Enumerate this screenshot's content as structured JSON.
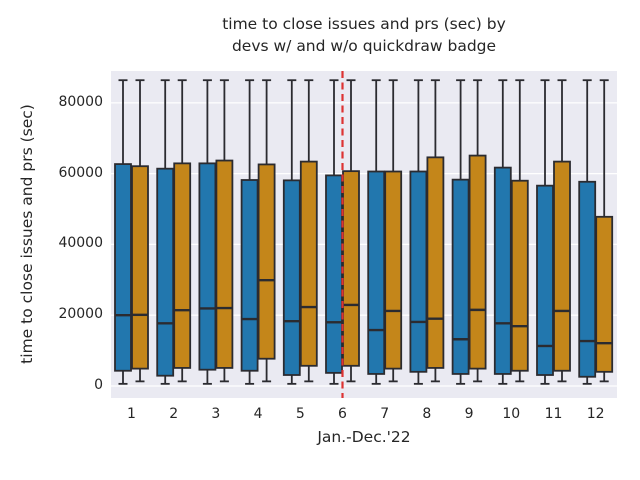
{
  "figure": {
    "title_line1": "time to close issues and prs (sec) by",
    "title_line2": "devs w/ and w/o quickdraw badge"
  },
  "colors": {
    "box_blue": "#2277AE",
    "box_orange": "#C4861A",
    "box_edge": "#2B2B30",
    "axes_background": "#EAEAF2",
    "gridline": "#FFFFFF",
    "reference_line": "#DD3333",
    "text": "#262626"
  },
  "chart_data": {
    "type": "grouped_boxplot",
    "title": "time to close issues and prs (sec) by devs w/ and w/o quickdraw badge",
    "xlabel": "Jan.-Dec.'22",
    "ylabel": "time to close issues and prs (sec)",
    "categories": [
      "1",
      "2",
      "3",
      "4",
      "5",
      "6",
      "7",
      "8",
      "9",
      "10",
      "11",
      "12"
    ],
    "y_ticks": [
      0,
      20000,
      40000,
      60000,
      80000
    ],
    "ylim": [
      -3400,
      89000
    ],
    "grid": "horizontal",
    "legend": "none",
    "reference_line": {
      "x_category": "6",
      "style": "dashed"
    },
    "series": [
      {
        "name": "blue-left-box",
        "boxes": [
          {
            "whislo": 600,
            "q1": 4300,
            "med": 20000,
            "q3": 62700,
            "whishi": 86400
          },
          {
            "whislo": 600,
            "q1": 2900,
            "med": 17700,
            "q3": 61400,
            "whishi": 86400
          },
          {
            "whislo": 600,
            "q1": 4600,
            "med": 21900,
            "q3": 62900,
            "whishi": 86400
          },
          {
            "whislo": 600,
            "q1": 4300,
            "med": 18900,
            "q3": 58200,
            "whishi": 86400
          },
          {
            "whislo": 600,
            "q1": 3100,
            "med": 18300,
            "q3": 58100,
            "whishi": 86400
          },
          {
            "whislo": 600,
            "q1": 3700,
            "med": 18000,
            "q3": 59500,
            "whishi": 86400
          },
          {
            "whislo": 600,
            "q1": 3400,
            "med": 15800,
            "q3": 60600,
            "whishi": 86400
          },
          {
            "whislo": 600,
            "q1": 4000,
            "med": 18100,
            "q3": 60600,
            "whishi": 86400
          },
          {
            "whislo": 600,
            "q1": 3400,
            "med": 13200,
            "q3": 58300,
            "whishi": 86400
          },
          {
            "whislo": 600,
            "q1": 3400,
            "med": 17700,
            "q3": 61700,
            "whishi": 86400
          },
          {
            "whislo": 600,
            "q1": 3100,
            "med": 11300,
            "q3": 56600,
            "whishi": 86400
          },
          {
            "whislo": 600,
            "q1": 2600,
            "med": 12700,
            "q3": 57700,
            "whishi": 86400
          }
        ]
      },
      {
        "name": "orange-right-box",
        "boxes": [
          {
            "whislo": 1300,
            "q1": 4900,
            "med": 20100,
            "q3": 62100,
            "whishi": 86400
          },
          {
            "whislo": 1300,
            "q1": 5100,
            "med": 21400,
            "q3": 62900,
            "whishi": 86400
          },
          {
            "whislo": 1300,
            "q1": 5100,
            "med": 22000,
            "q3": 63700,
            "whishi": 86400
          },
          {
            "whislo": 1300,
            "q1": 7700,
            "med": 29900,
            "q3": 62600,
            "whishi": 86400
          },
          {
            "whislo": 1300,
            "q1": 5700,
            "med": 22300,
            "q3": 63400,
            "whishi": 86400
          },
          {
            "whislo": 1300,
            "q1": 5700,
            "med": 22900,
            "q3": 60700,
            "whishi": 86400
          },
          {
            "whislo": 1300,
            "q1": 4900,
            "med": 21200,
            "q3": 60600,
            "whishi": 86400
          },
          {
            "whislo": 1300,
            "q1": 5100,
            "med": 19000,
            "q3": 64600,
            "whishi": 86400
          },
          {
            "whislo": 1300,
            "q1": 4900,
            "med": 21500,
            "q3": 65100,
            "whishi": 86400
          },
          {
            "whislo": 1300,
            "q1": 4300,
            "med": 16900,
            "q3": 58000,
            "whishi": 86400
          },
          {
            "whislo": 1300,
            "q1": 4300,
            "med": 21200,
            "q3": 63400,
            "whishi": 86400
          },
          {
            "whislo": 1300,
            "q1": 4000,
            "med": 12100,
            "q3": 47800,
            "whishi": 86400
          }
        ]
      }
    ]
  }
}
